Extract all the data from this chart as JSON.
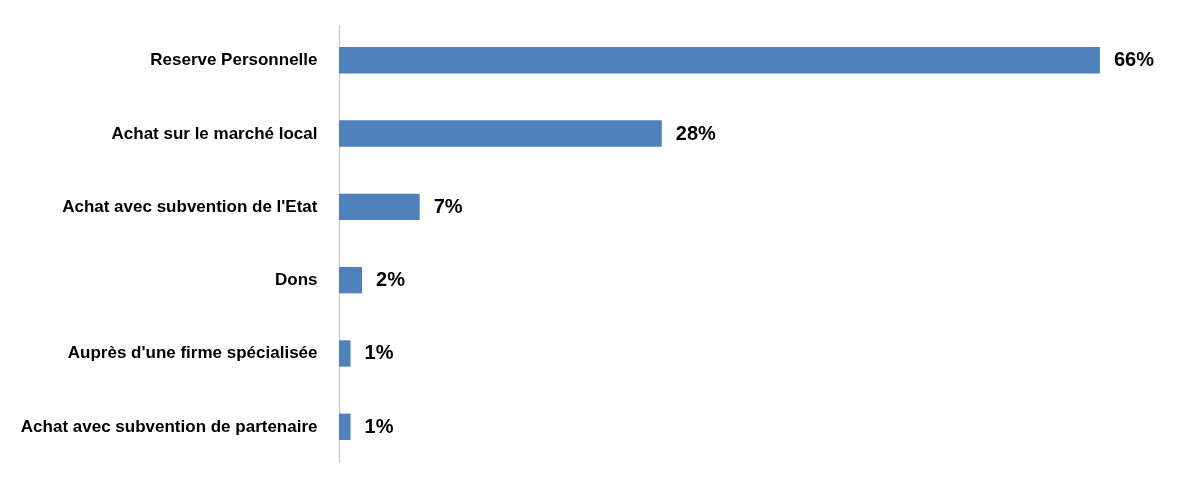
{
  "chart_data": {
    "type": "bar",
    "orientation": "horizontal",
    "categories": [
      "Reserve Personnelle",
      "Achat sur le marché local",
      "Achat avec subvention de l'Etat",
      "Dons",
      "Auprès d'une firme spécialisée",
      "Achat avec subvention de partenaire"
    ],
    "values": [
      66,
      28,
      7,
      2,
      1,
      1
    ],
    "value_labels": [
      "66%",
      "28%",
      "7%",
      "2%",
      "1%",
      "1%"
    ],
    "color": "#4f81bd",
    "grid": false
  }
}
